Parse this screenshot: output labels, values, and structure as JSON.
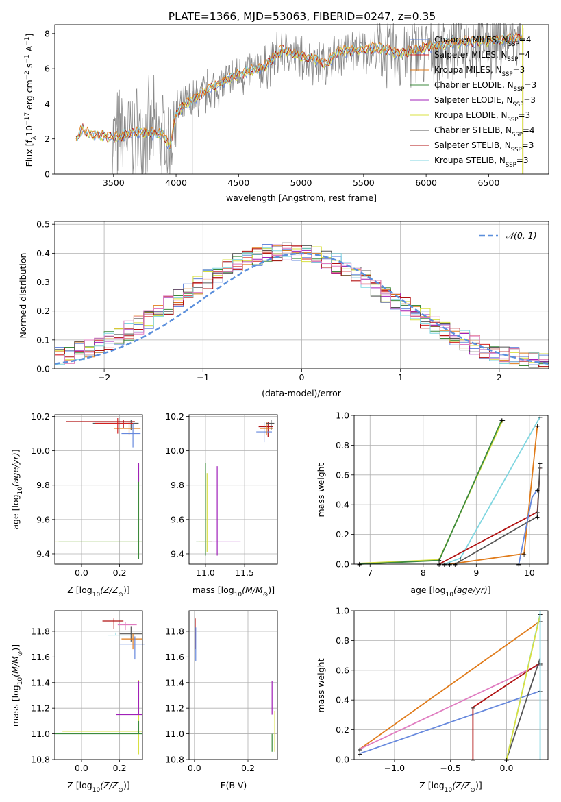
{
  "title": "PLATE=1366, MJD=53063, FIBERID=0247, z=0.35",
  "colors": {
    "Chabrier MILES": "#6688dd",
    "Salpeter MILES": "#d22020",
    "Kroupa MILES": "#e07b1a",
    "Chabrier ELODIE": "#3c8a3c",
    "Salpeter ELODIE": "#a020b8",
    "Kroupa ELODIE": "#d8e040",
    "Chabrier STELIB": "#555555",
    "Salpeter STELIB": "#b01010",
    "Kroupa STELIB": "#7fd6e0",
    "pink": "#e07cc0"
  },
  "chart_data": [
    {
      "id": "spectrum",
      "type": "line",
      "xlabel": "wavelength [Angstrom, rest frame]",
      "ylabel": "Flux [f_λ 10^-17 erg cm^-2 s^-1 A^-1]",
      "xlim": [
        3030,
        6980
      ],
      "ylim": [
        0,
        8.5
      ],
      "xticks": [
        3500,
        4000,
        4500,
        5000,
        5500,
        6000,
        6500
      ],
      "yticks": [
        0,
        2,
        4,
        6,
        8
      ],
      "legend": [
        {
          "base": "Chabrier MILES, N",
          "sub": "SSP",
          "tail": "=4"
        },
        {
          "base": "Salpeter MILES, N",
          "sub": "SSP",
          "tail": "=4"
        },
        {
          "base": "Kroupa MILES, N",
          "sub": "SSP",
          "tail": "=3"
        },
        {
          "base": "Chabrier ELODIE, N",
          "sub": "SSP",
          "tail": "=3"
        },
        {
          "base": "Salpeter ELODIE, N",
          "sub": "SSP",
          "tail": "=3"
        },
        {
          "base": "Kroupa ELODIE, N",
          "sub": "SSP",
          "tail": "=3"
        },
        {
          "base": "Chabrier STELIB, N",
          "sub": "SSP",
          "tail": "=4"
        },
        {
          "base": "Salpeter STELIB, N",
          "sub": "SSP",
          "tail": "=3"
        },
        {
          "base": "Kroupa STELIB, N",
          "sub": "SSP",
          "tail": "=3"
        }
      ],
      "model_keypoints": {
        "x": [
          3200,
          3250,
          3300,
          3500,
          3700,
          3900,
          3950,
          4000,
          4100,
          4300,
          4500,
          4700,
          4850,
          5000,
          5100,
          5200,
          5300,
          5500,
          5600,
          5800,
          6000,
          6200,
          6500,
          6780
        ],
        "y": [
          1.9,
          2.5,
          2.2,
          2.0,
          2.3,
          2.2,
          1.4,
          3.4,
          4.0,
          4.9,
          5.6,
          6.0,
          7.0,
          6.6,
          6.5,
          6.2,
          6.9,
          7.0,
          7.1,
          6.8,
          7.1,
          7.4,
          7.5,
          7.7
        ]
      }
    },
    {
      "id": "residuals",
      "type": "histogram",
      "xlabel": "(data-model)/error",
      "ylabel": "Normed distribution",
      "xlim": [
        -2.5,
        2.5
      ],
      "ylim": [
        0,
        0.51
      ],
      "xticks": [
        -2,
        -1,
        0,
        1,
        2
      ],
      "yticks": [
        0.0,
        0.1,
        0.2,
        0.3,
        0.4,
        0.5
      ],
      "legend_label": "𝒩(0, 1)"
    },
    {
      "id": "age-vs-Z",
      "type": "scatter",
      "xlabel_parts": [
        "Z [log",
        "10",
        "(Z/Z",
        "⊙",
        ")]"
      ],
      "ylabel": "age  [log10(age/yr)]",
      "xlim": [
        -0.14,
        0.32
      ],
      "ylim": [
        9.34,
        10.21
      ],
      "xticks": [
        0.0,
        0.2
      ],
      "yticks": [
        9.4,
        9.6,
        9.8,
        10.0,
        10.2
      ]
    },
    {
      "id": "age-vs-mass",
      "type": "scatter",
      "xlabel_parts": [
        "mass [log",
        "10",
        "(M/M",
        "⊙",
        ")]"
      ],
      "xlim": [
        10.79,
        11.92
      ],
      "ylim": [
        9.34,
        10.21
      ],
      "xticks": [
        11.0,
        11.5
      ],
      "yticks": [
        9.4,
        9.6,
        9.8,
        10.0,
        10.2
      ]
    },
    {
      "id": "massweight-vs-age",
      "type": "line",
      "xlabel": "age  [log10(age/yr)]",
      "ylabel": "mass weight",
      "xlim": [
        6.7,
        10.35
      ],
      "ylim": [
        0,
        1
      ],
      "xticks": [
        7,
        8,
        9,
        10
      ],
      "yticks": [
        0.0,
        0.2,
        0.4,
        0.6,
        0.8,
        1.0
      ]
    },
    {
      "id": "mass-vs-Z",
      "type": "scatter",
      "xlabel_parts": [
        "Z [log",
        "10",
        "(Z/Z",
        "⊙",
        ")]"
      ],
      "ylabel": "mass [log10(M/M⊙)]",
      "xlim": [
        -0.14,
        0.32
      ],
      "ylim": [
        10.8,
        11.96
      ],
      "xticks": [
        0.0,
        0.2
      ],
      "yticks": [
        10.8,
        11.0,
        11.2,
        11.4,
        11.6,
        11.8
      ]
    },
    {
      "id": "mass-vs-ebv",
      "type": "scatter",
      "xlabel": "E(B-V)",
      "xlim": [
        -0.02,
        0.31
      ],
      "ylim": [
        10.8,
        11.96
      ],
      "xticks": [
        0.0,
        0.2
      ],
      "yticks": [
        10.8,
        11.0,
        11.2,
        11.4,
        11.6,
        11.8
      ]
    },
    {
      "id": "massweight-vs-Z",
      "type": "line",
      "xlabel_parts": [
        "Z [log",
        "10",
        "(Z/Z",
        "⊙",
        ")]"
      ],
      "ylabel": "mass weight",
      "xlim": [
        -1.36,
        0.37
      ],
      "ylim": [
        0,
        1
      ],
      "xticks": [
        -1.0,
        -0.5,
        0.0
      ],
      "yticks": [
        0.0,
        0.2,
        0.4,
        0.6,
        0.8,
        1.0
      ]
    }
  ]
}
